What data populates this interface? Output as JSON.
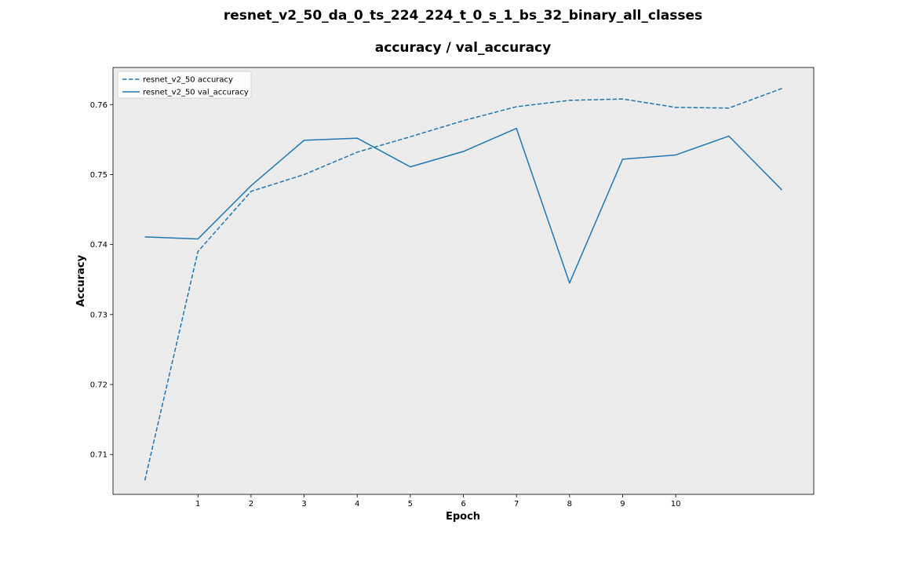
{
  "chart_data": {
    "type": "line",
    "title": "resnet_v2_50_da_0_ts_224_224_t_0_s_1_bs_32_binary_all_classes",
    "subtitle": "accuracy / val_accuracy",
    "xlabel": "Epoch",
    "ylabel": "Accuracy",
    "xlim": [
      -0.6,
      12.6
    ],
    "ylim": [
      0.7043,
      0.7653
    ],
    "xticks": [
      1,
      2,
      3,
      4,
      5,
      6,
      7,
      8,
      9,
      10
    ],
    "xtick_labels": [
      "1",
      "2",
      "3",
      "4",
      "5",
      "6",
      "7",
      "8",
      "9",
      "10"
    ],
    "yticks": [
      0.71,
      0.72,
      0.73,
      0.74,
      0.75,
      0.76
    ],
    "ytick_labels": [
      "0.71",
      "0.72",
      "0.73",
      "0.74",
      "0.75",
      "0.76"
    ],
    "grid": false,
    "background": "#ececec",
    "legend_position": "top-left",
    "x": [
      0,
      1,
      2,
      3,
      4,
      5,
      6,
      7,
      8,
      9,
      10,
      11,
      12
    ],
    "series": [
      {
        "name": "resnet_v2_50 accuracy",
        "style": "dashed",
        "color": "#1f77b4",
        "values": [
          0.7063,
          0.739,
          0.7476,
          0.75,
          0.7532,
          0.7554,
          0.7577,
          0.7597,
          0.7606,
          0.7608,
          0.7596,
          0.7595,
          0.7623
        ]
      },
      {
        "name": "resnet_v2_50 val_accuracy",
        "style": "solid",
        "color": "#1f77b4",
        "values": [
          0.7411,
          0.7408,
          0.7484,
          0.7549,
          0.7552,
          0.7511,
          0.7533,
          0.7566,
          0.7345,
          0.7522,
          0.7528,
          0.7555,
          0.7478
        ]
      }
    ]
  }
}
